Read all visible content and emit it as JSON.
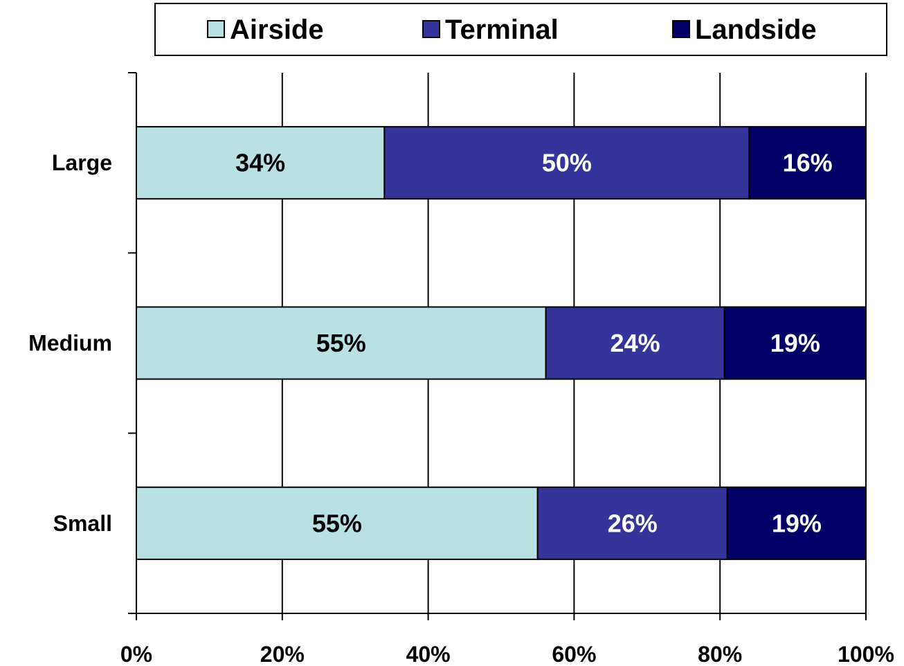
{
  "chart_data": {
    "type": "stacked_barh",
    "stacked": "percent",
    "categories": [
      "Large",
      "Medium",
      "Small"
    ],
    "series": [
      {
        "name": "Airside",
        "color": "#b9e0e3",
        "values": [
          34,
          55,
          55
        ],
        "value_labels": [
          "34%",
          "55%",
          "55%"
        ],
        "label_color": "#000000"
      },
      {
        "name": "Terminal",
        "color": "#35349a",
        "values": [
          50,
          24,
          26
        ],
        "value_labels": [
          "50%",
          "24%",
          "26%"
        ],
        "label_color": "#ffffff"
      },
      {
        "name": "Landside",
        "color": "#020066",
        "values": [
          16,
          19,
          19
        ],
        "value_labels": [
          "16%",
          "19%",
          "19%"
        ],
        "label_color": "#ffffff"
      }
    ],
    "xlim": [
      0,
      100
    ],
    "xticks": [
      {
        "value": 0,
        "label": "0%"
      },
      {
        "value": 20,
        "label": "20%"
      },
      {
        "value": 40,
        "label": "40%"
      },
      {
        "value": 60,
        "label": "60%"
      },
      {
        "value": 80,
        "label": "80%"
      },
      {
        "value": 100,
        "label": "100%"
      }
    ],
    "grid": true,
    "legend": "top"
  }
}
